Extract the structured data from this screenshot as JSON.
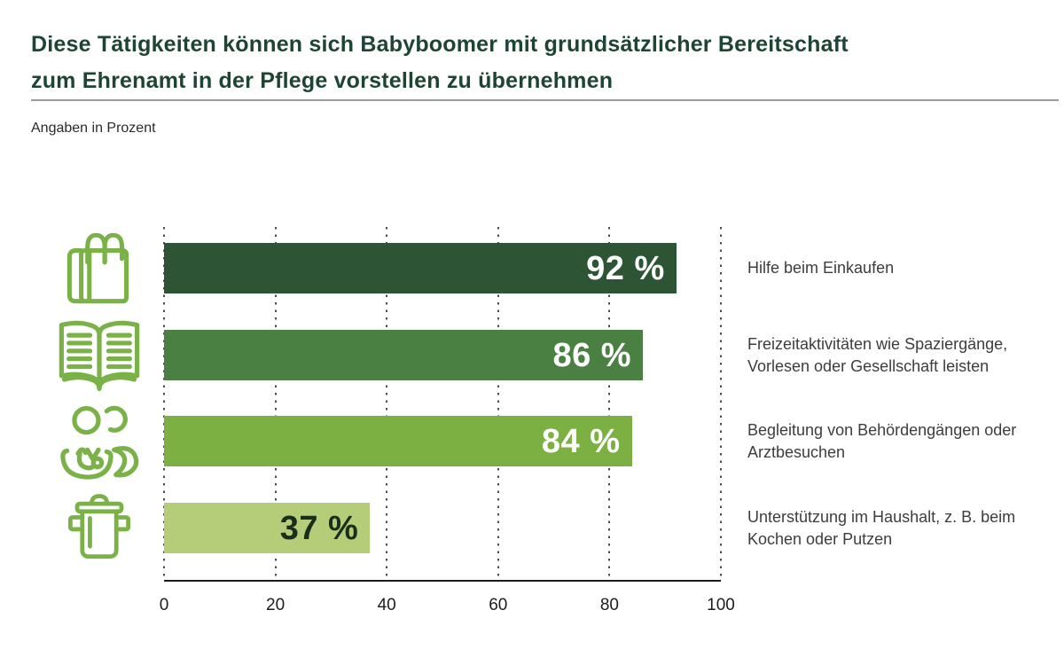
{
  "header": {
    "title_line1": "Diese Tätigkeiten können sich Babyboomer mit grundsätzlicher Bereitschaft",
    "title_line2": "zum Ehrenamt in der Pflege vorstellen zu übernehmen",
    "subtitle": "Angaben in Prozent"
  },
  "colors": {
    "title": "#1e4534",
    "icon": "#7ab247",
    "divider": "#9b9b9b",
    "axis": "#1c1c1c",
    "grid_dot": "#4d4d4d",
    "label_text": "#3d3d3d"
  },
  "chart_data": {
    "type": "bar",
    "orientation": "horizontal",
    "unit": "%",
    "title": "Diese Tätigkeiten können sich Babyboomer mit grundsätzlicher Bereitschaft zum Ehrenamt in der Pflege vorstellen zu übernehmen",
    "subtitle": "Angaben in Prozent",
    "xlim": [
      0,
      100
    ],
    "x_ticks": [
      "0",
      "20",
      "40",
      "60",
      "80",
      "100"
    ],
    "grid": "dotted-vertical",
    "legend": "none",
    "rows": [
      {
        "icon": "shopping-bags-icon",
        "value": 92,
        "value_label": "92 %",
        "label": "Hilfe beim Einkaufen",
        "bar_color": "#2d5435",
        "value_color": "#ffffff"
      },
      {
        "icon": "open-book-icon",
        "value": 86,
        "value_label": "86 %",
        "label": "Freizeitaktivitäten wie Spaziergänge, Vorlesen oder Gesellschaft leisten",
        "bar_color": "#4a8143",
        "value_color": "#ffffff"
      },
      {
        "icon": "doctor-patient-icon",
        "value": 84,
        "value_label": "84 %",
        "label": "Begleitung von Behördengängen oder Arztbesuchen",
        "bar_color": "#7cb043",
        "value_color": "#ffffff"
      },
      {
        "icon": "cooking-pot-icon",
        "value": 37,
        "value_label": "37 %",
        "label": "Unterstützung im Haushalt, z. B. beim Kochen oder Putzen",
        "bar_color": "#b5cd79",
        "value_color": "#1a2e1c"
      }
    ]
  }
}
